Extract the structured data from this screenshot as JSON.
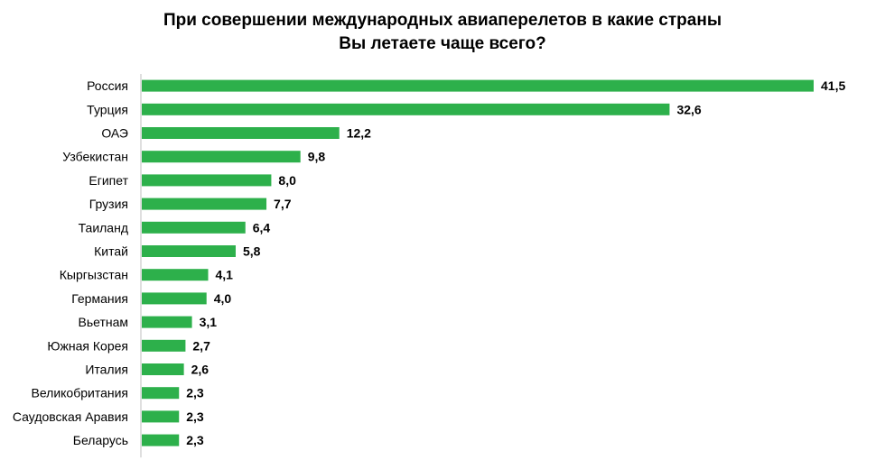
{
  "chart_data": {
    "type": "bar",
    "orientation": "horizontal",
    "title_lines": [
      "При совершении международных авиаперелетов в какие страны",
      "Вы летаете чаще всего?"
    ],
    "categories": [
      "Россия",
      "Турция",
      "ОАЭ",
      "Узбекистан",
      "Египет",
      "Грузия",
      "Таиланд",
      "Китай",
      "Кыргызстан",
      "Германия",
      "Вьетнам",
      "Южная Корея",
      "Италия",
      "Великобритания",
      "Саудовская Аравия",
      "Беларусь"
    ],
    "values": [
      41.5,
      32.6,
      12.2,
      9.8,
      8.0,
      7.7,
      6.4,
      5.8,
      4.1,
      4.0,
      3.1,
      2.7,
      2.6,
      2.3,
      2.3,
      2.3
    ],
    "value_labels": [
      "41,5",
      "32,6",
      "12,2",
      "9,8",
      "8,0",
      "7,7",
      "6,4",
      "5,8",
      "4,1",
      "4,0",
      "3,1",
      "2,7",
      "2,6",
      "2,3",
      "2,3",
      "2,3"
    ],
    "bar_color": "#2db04b",
    "axis_color": "#bfbfbf",
    "xlim": [
      0,
      41.5
    ],
    "grid": false,
    "legend": "none"
  }
}
